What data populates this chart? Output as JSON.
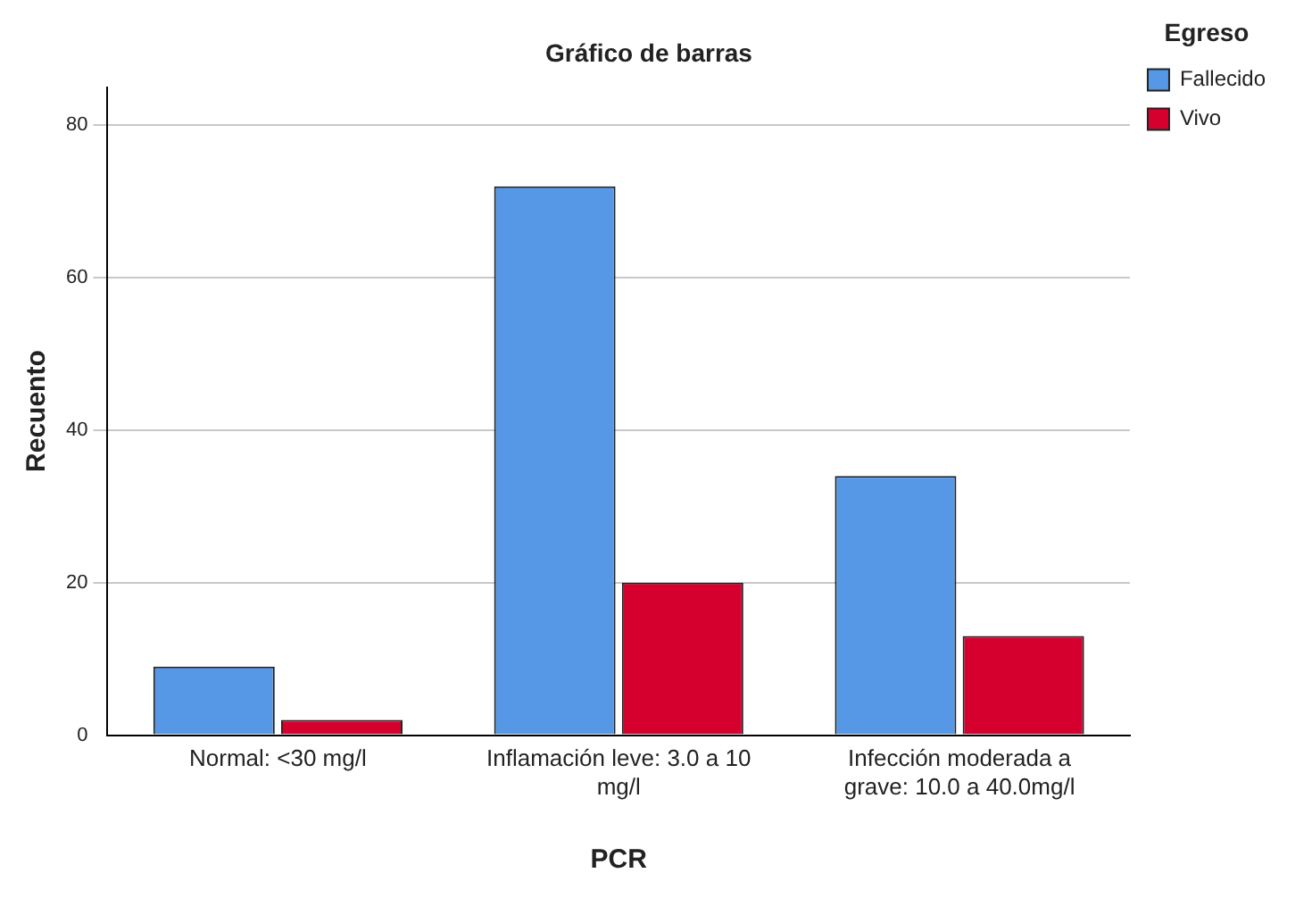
{
  "chart_data": {
    "type": "bar",
    "title": "Gráfico de barras",
    "xlabel": "PCR",
    "ylabel": "Recuento",
    "legend_title": "Egreso",
    "categories": [
      "Normal: <30 mg/l",
      "Inflamación leve: 3.0 a 10 mg/l",
      "Infección moderada a grave: 10.0 a 40.0mg/l"
    ],
    "series": [
      {
        "name": "Fallecido",
        "color": "#5698e6",
        "values": [
          9,
          72,
          34
        ]
      },
      {
        "name": "Vivo",
        "color": "#d6002f",
        "values": [
          2,
          20,
          13
        ]
      }
    ],
    "ylim": [
      0,
      85
    ],
    "yticks": [
      0,
      20,
      40,
      60,
      80
    ],
    "grid": "y",
    "legend": "top right"
  }
}
